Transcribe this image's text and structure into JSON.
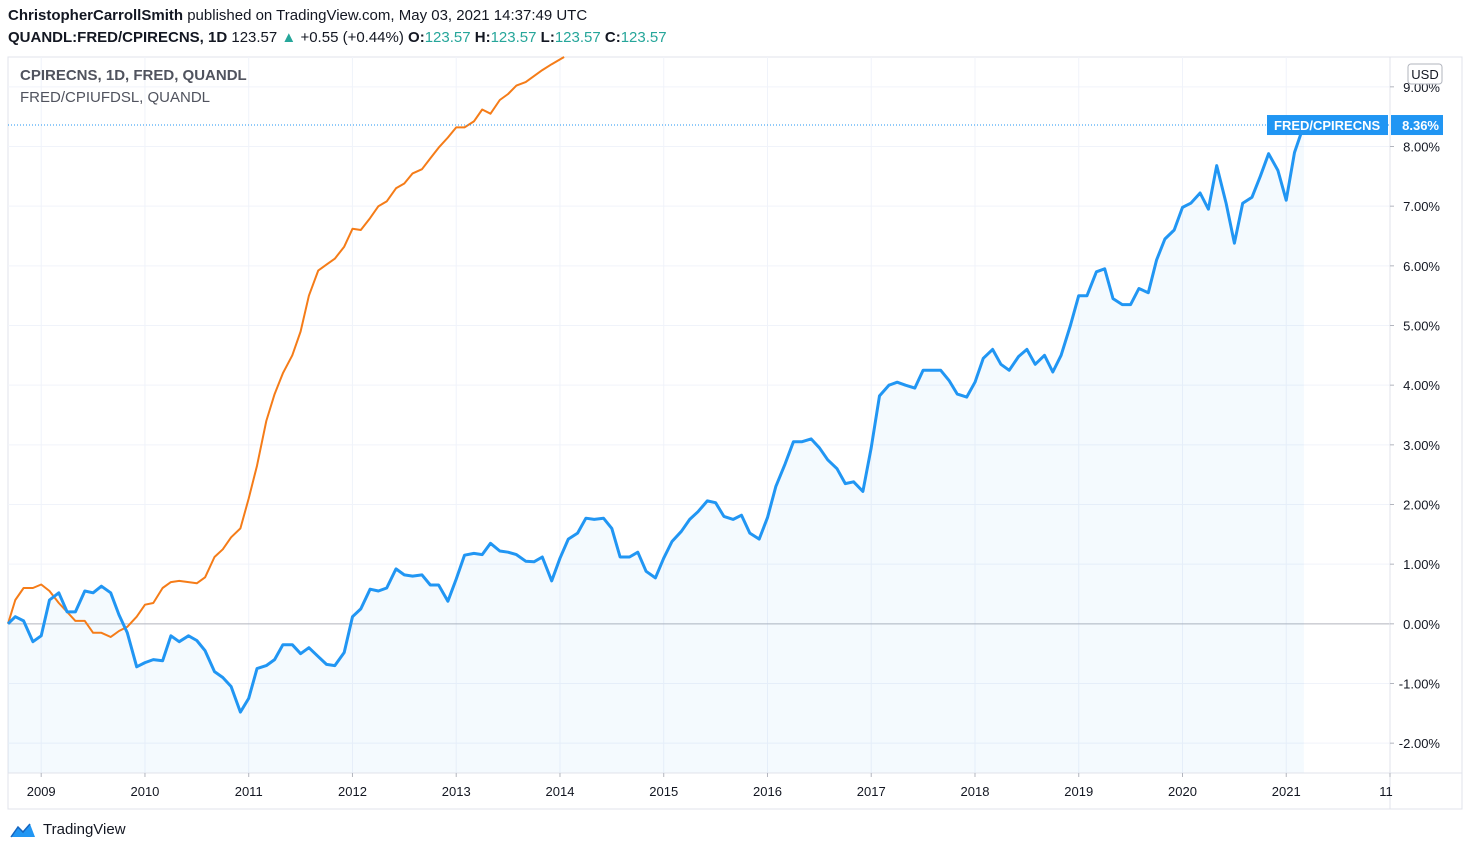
{
  "header": {
    "author": "ChristopherCarrollSmith",
    "published_text": "published on TradingView.com, May 03, 2021 14:37:49 UTC",
    "symbol": "QUANDL:FRED/CPIRECNS, 1D",
    "last": "123.57",
    "change_arrow": "▲",
    "change": "+0.55 (+0.44%)",
    "o_label": "O:",
    "o_value": "123.57",
    "h_label": "H:",
    "h_value": "123.57",
    "l_label": "L:",
    "l_value": "123.57",
    "c_label": "C:",
    "c_value": "123.57"
  },
  "legend": {
    "main": "CPIRECNS, 1D, FRED, QUANDL",
    "compare": "FRED/CPIUFDSL, QUANDL"
  },
  "footer": {
    "brand": "TradingView"
  },
  "chart_data": {
    "type": "line",
    "axis_currency": "USD",
    "y_unit": "%",
    "ylim": [
      -2.5,
      9.5
    ],
    "xlim": [
      2008.68,
      2022.0
    ],
    "x_ticks": [
      "2009",
      "2010",
      "2011",
      "2012",
      "2013",
      "2014",
      "2015",
      "2016",
      "2017",
      "2018",
      "2019",
      "2020",
      "2021",
      "11"
    ],
    "x_tick_values": [
      2009.0,
      2010.0,
      2011.0,
      2012.0,
      2013.0,
      2014.0,
      2015.0,
      2016.0,
      2017.0,
      2018.0,
      2019.0,
      2020.0,
      2021.0,
      2022.0
    ],
    "y_ticks": [
      "-2.00%",
      "-1.00%",
      "0.00%",
      "1.00%",
      "2.00%",
      "3.00%",
      "4.00%",
      "5.00%",
      "6.00%",
      "7.00%",
      "8.00%",
      "9.00%"
    ],
    "y_tick_values": [
      -2,
      -1,
      0,
      1,
      2,
      3,
      4,
      5,
      6,
      7,
      8,
      9
    ],
    "last_label": {
      "name": "FRED/CPIRECNS",
      "value": "8.36%",
      "y": 8.36
    },
    "colors": {
      "main": "#2196f3",
      "compare": "#f57c18",
      "label_bg": "#2196f3",
      "grid": "#f0f3fa",
      "zero": "#b2b5be"
    },
    "series": [
      {
        "name": "FRED/CPIRECNS",
        "x": [
          2008.67,
          2008.75,
          2008.83,
          2008.92,
          2009.0,
          2009.08,
          2009.17,
          2009.25,
          2009.33,
          2009.42,
          2009.5,
          2009.58,
          2009.67,
          2009.75,
          2009.83,
          2009.92,
          2010.0,
          2010.08,
          2010.17,
          2010.25,
          2010.33,
          2010.42,
          2010.5,
          2010.58,
          2010.67,
          2010.75,
          2010.83,
          2010.92,
          2011.0,
          2011.08,
          2011.17,
          2011.25,
          2011.33,
          2011.42,
          2011.5,
          2011.58,
          2011.67,
          2011.75,
          2011.83,
          2011.92,
          2012.0,
          2012.08,
          2012.17,
          2012.25,
          2012.33,
          2012.42,
          2012.5,
          2012.58,
          2012.67,
          2012.75,
          2012.83,
          2012.92,
          2013.0,
          2013.08,
          2013.17,
          2013.25,
          2013.33,
          2013.42,
          2013.5,
          2013.58,
          2013.67,
          2013.75,
          2013.83,
          2013.92,
          2014.0,
          2014.08,
          2014.17,
          2014.25,
          2014.33,
          2014.42,
          2014.5,
          2014.58,
          2014.67,
          2014.75,
          2014.83,
          2014.92,
          2015.0,
          2015.08,
          2015.17,
          2015.25,
          2015.33,
          2015.42,
          2015.5,
          2015.58,
          2015.67,
          2015.75,
          2015.83,
          2015.92,
          2016.0,
          2016.08,
          2016.17,
          2016.25,
          2016.33,
          2016.42,
          2016.5,
          2016.58,
          2016.67,
          2016.75,
          2016.83,
          2016.92,
          2017.0,
          2017.08,
          2017.17,
          2017.25,
          2017.33,
          2017.42,
          2017.5,
          2017.58,
          2017.67,
          2017.75,
          2017.83,
          2017.92,
          2018.0,
          2018.08,
          2018.17,
          2018.25,
          2018.33,
          2018.42,
          2018.5,
          2018.58,
          2018.67,
          2018.75,
          2018.83,
          2018.92,
          2019.0,
          2019.08,
          2019.17,
          2019.25,
          2019.33,
          2019.42,
          2019.5,
          2019.58,
          2019.67,
          2019.75,
          2019.83,
          2019.92,
          2020.0,
          2020.08,
          2020.17,
          2020.25,
          2020.33,
          2020.42,
          2020.5,
          2020.58,
          2020.67,
          2020.75,
          2020.83,
          2020.92,
          2021.0,
          2021.08,
          2021.17
        ],
        "values": [
          0.0,
          0.12,
          0.05,
          -0.3,
          -0.2,
          0.4,
          0.52,
          0.2,
          0.2,
          0.55,
          0.52,
          0.63,
          0.52,
          0.15,
          -0.15,
          -0.72,
          -0.65,
          -0.6,
          -0.62,
          -0.2,
          -0.3,
          -0.2,
          -0.28,
          -0.45,
          -0.8,
          -0.9,
          -1.05,
          -1.48,
          -1.25,
          -0.75,
          -0.7,
          -0.6,
          -0.35,
          -0.35,
          -0.5,
          -0.4,
          -0.55,
          -0.68,
          -0.7,
          -0.48,
          0.12,
          0.25,
          0.58,
          0.55,
          0.6,
          0.92,
          0.82,
          0.8,
          0.82,
          0.65,
          0.65,
          0.38,
          0.75,
          1.15,
          1.18,
          1.16,
          1.35,
          1.22,
          1.2,
          1.16,
          1.05,
          1.04,
          1.12,
          0.72,
          1.1,
          1.42,
          1.52,
          1.77,
          1.75,
          1.77,
          1.6,
          1.12,
          1.12,
          1.2,
          0.88,
          0.77,
          1.1,
          1.38,
          1.55,
          1.75,
          1.88,
          2.06,
          2.03,
          1.8,
          1.75,
          1.82,
          1.52,
          1.42,
          1.78,
          2.3,
          2.68,
          3.05,
          3.05,
          3.1,
          2.95,
          2.75,
          2.6,
          2.35,
          2.38,
          2.22,
          2.95,
          3.82,
          4.0,
          4.05,
          4.0,
          3.95,
          4.25,
          4.25,
          4.25,
          4.08,
          3.85,
          3.8,
          4.05,
          4.45,
          4.6,
          4.35,
          4.25,
          4.48,
          4.6,
          4.35,
          4.5,
          4.22,
          4.5,
          5.0,
          5.5,
          5.5,
          5.9,
          5.95,
          5.45,
          5.35,
          5.35,
          5.62,
          5.55,
          6.1,
          6.45,
          6.6,
          6.98,
          7.05,
          7.22,
          6.95,
          7.68,
          7.05,
          6.38,
          7.05,
          7.15,
          7.5,
          7.88,
          7.6,
          7.1,
          7.9,
          8.36
        ]
      },
      {
        "name": "FRED/CPIUFDSL",
        "x": [
          2008.67,
          2008.75,
          2008.83,
          2008.92,
          2009.0,
          2009.08,
          2009.17,
          2009.25,
          2009.33,
          2009.42,
          2009.5,
          2009.58,
          2009.67,
          2009.75,
          2009.83,
          2009.92,
          2010.0,
          2010.08,
          2010.17,
          2010.25,
          2010.33,
          2010.42,
          2010.5,
          2010.58,
          2010.67,
          2010.75,
          2010.83,
          2010.92,
          2011.0,
          2011.08,
          2011.17,
          2011.25,
          2011.33,
          2011.42,
          2011.5,
          2011.58,
          2011.67,
          2011.75,
          2011.83,
          2011.92,
          2012.0,
          2012.08,
          2012.17,
          2012.25,
          2012.33,
          2012.42,
          2012.5,
          2012.58,
          2012.67,
          2012.75,
          2012.83,
          2012.92,
          2013.0,
          2013.08,
          2013.17,
          2013.25,
          2013.33,
          2013.42,
          2013.5,
          2013.58,
          2013.67,
          2013.75,
          2013.83,
          2013.92,
          2014.04
        ],
        "values": [
          0.0,
          0.4,
          0.6,
          0.6,
          0.66,
          0.55,
          0.35,
          0.2,
          0.05,
          0.05,
          -0.15,
          -0.15,
          -0.22,
          -0.12,
          -0.05,
          0.12,
          0.32,
          0.35,
          0.6,
          0.7,
          0.72,
          0.7,
          0.68,
          0.78,
          1.12,
          1.25,
          1.45,
          1.6,
          2.1,
          2.65,
          3.4,
          3.85,
          4.2,
          4.5,
          4.9,
          5.5,
          5.92,
          6.02,
          6.12,
          6.32,
          6.62,
          6.6,
          6.8,
          7.0,
          7.08,
          7.3,
          7.38,
          7.55,
          7.62,
          7.8,
          7.98,
          8.15,
          8.32,
          8.32,
          8.42,
          8.62,
          8.55,
          8.78,
          8.88,
          9.02,
          9.08,
          9.18,
          9.28,
          9.38,
          9.55
        ]
      }
    ]
  }
}
